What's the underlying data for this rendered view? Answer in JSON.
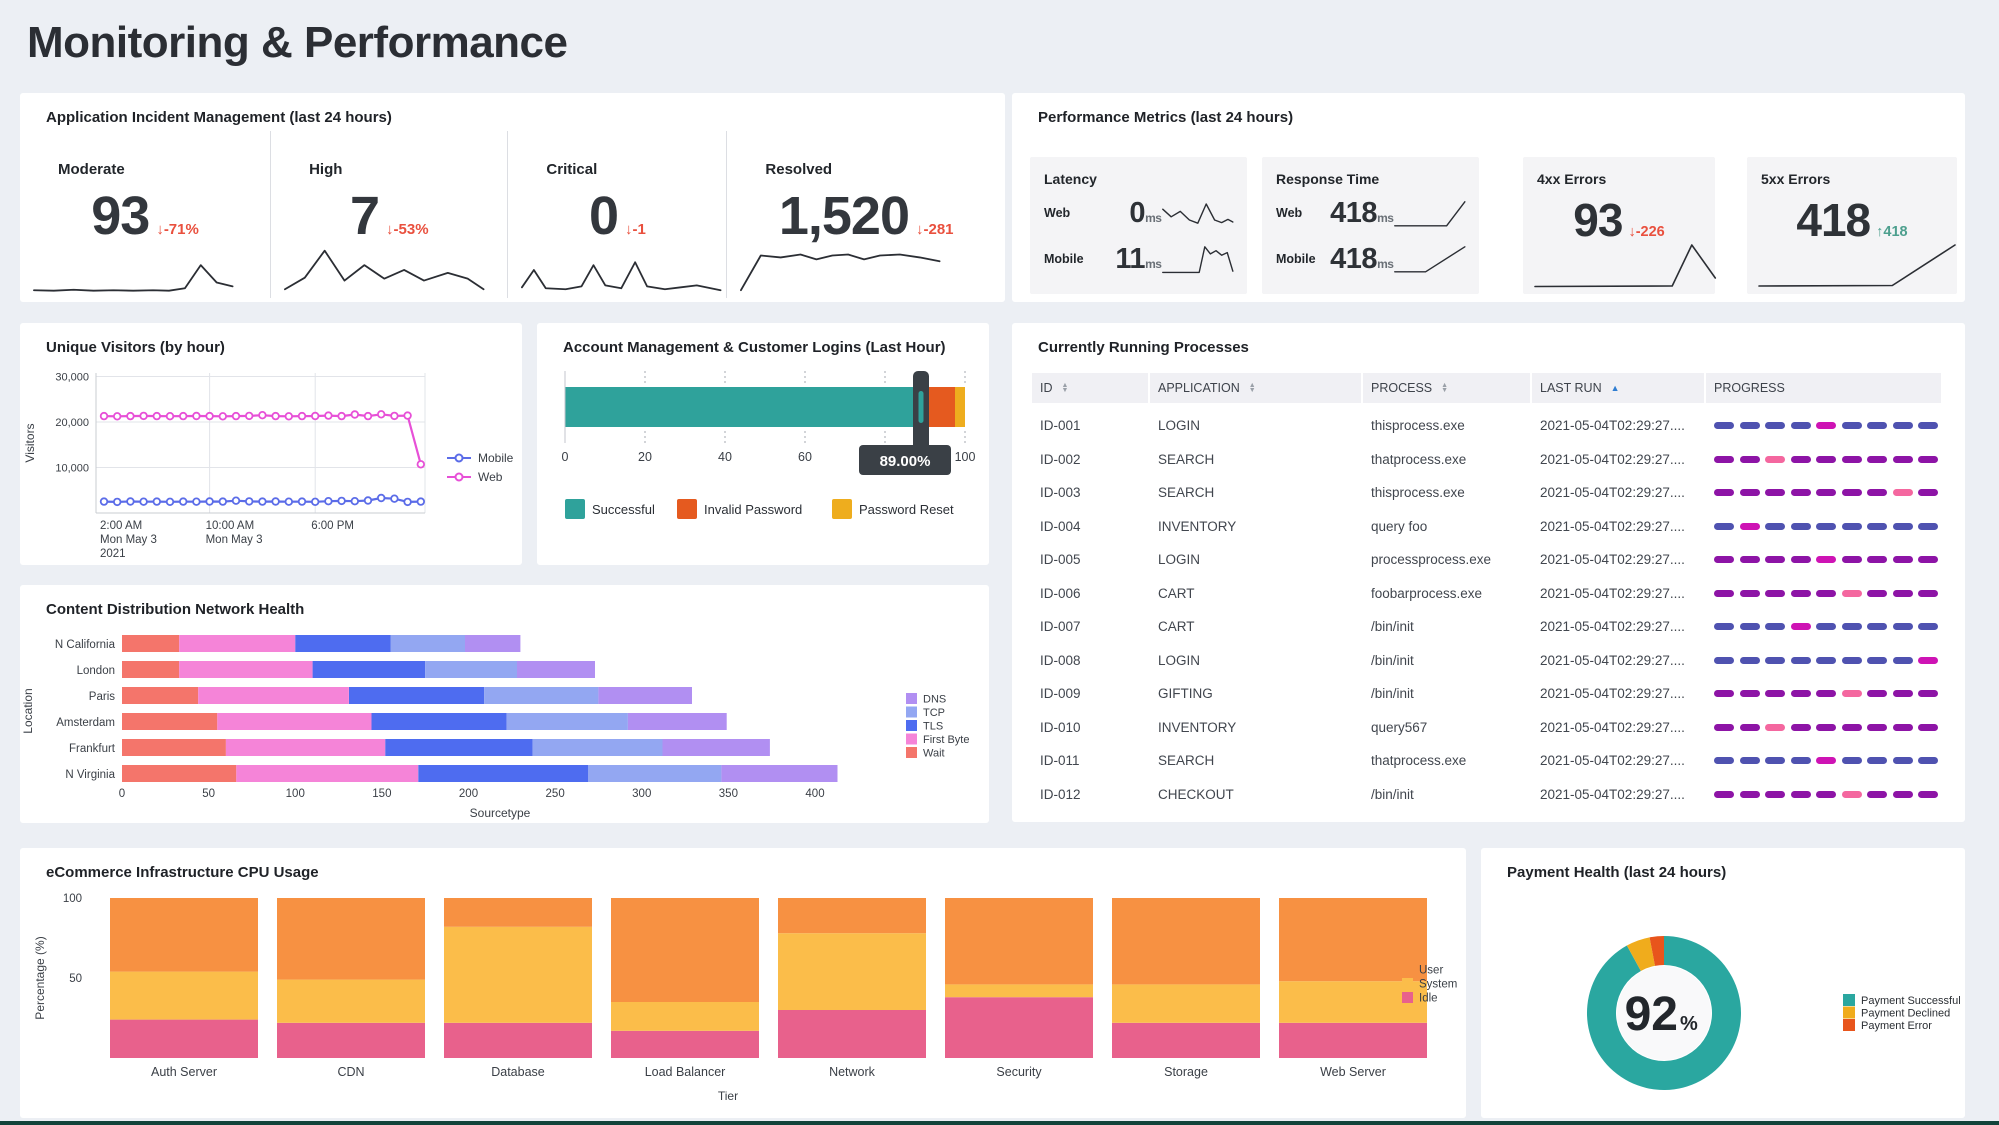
{
  "page": {
    "title": "Monitoring & Performance"
  },
  "colors": {
    "delta_down": "#e9503e",
    "delta_up": "#4d9f8e",
    "sparkline": "#2b2e34",
    "progress_palette": {
      "indigo": "#4f52b0",
      "purple": "#8d14a6",
      "magenta": "#ce13b4",
      "pink": "#f4679f"
    }
  },
  "incident_panel": {
    "title": "Application Incident Management (last 24 hours)",
    "cards": [
      {
        "label": "Moderate",
        "value": "93",
        "arrow": "down",
        "delta": "-71%",
        "spark": [
          [
            0,
            6
          ],
          [
            10,
            5
          ],
          [
            20,
            7
          ],
          [
            30,
            5
          ],
          [
            40,
            6
          ],
          [
            50,
            5
          ],
          [
            60,
            6
          ],
          [
            68,
            5
          ],
          [
            76,
            10
          ],
          [
            84,
            58
          ],
          [
            92,
            22
          ],
          [
            100,
            14
          ]
        ]
      },
      {
        "label": "High",
        "value": "7",
        "arrow": "down",
        "delta": "-53%",
        "spark": [
          [
            0,
            8
          ],
          [
            10,
            32
          ],
          [
            20,
            88
          ],
          [
            30,
            26
          ],
          [
            40,
            58
          ],
          [
            50,
            30
          ],
          [
            60,
            48
          ],
          [
            70,
            26
          ],
          [
            82,
            42
          ],
          [
            92,
            30
          ],
          [
            100,
            8
          ]
        ]
      },
      {
        "label": "Critical",
        "value": "0",
        "arrow": "down",
        "delta": "-1",
        "spark": [
          [
            0,
            12
          ],
          [
            6,
            48
          ],
          [
            12,
            10
          ],
          [
            22,
            8
          ],
          [
            30,
            14
          ],
          [
            36,
            58
          ],
          [
            42,
            16
          ],
          [
            50,
            10
          ],
          [
            57,
            64
          ],
          [
            63,
            14
          ],
          [
            72,
            8
          ],
          [
            80,
            12
          ],
          [
            88,
            16
          ],
          [
            100,
            6
          ]
        ]
      },
      {
        "label": "Resolved",
        "value": "1,520",
        "arrow": "down",
        "delta": "-281",
        "spark": [
          [
            0,
            6
          ],
          [
            10,
            78
          ],
          [
            20,
            74
          ],
          [
            30,
            80
          ],
          [
            38,
            70
          ],
          [
            46,
            78
          ],
          [
            54,
            80
          ],
          [
            62,
            70
          ],
          [
            70,
            78
          ],
          [
            80,
            80
          ],
          [
            90,
            74
          ],
          [
            100,
            66
          ]
        ]
      }
    ]
  },
  "performance_panel": {
    "title": "Performance Metrics (last 24 hours)",
    "cards": [
      {
        "kind": "duo",
        "title": "Latency",
        "rows": [
          {
            "label": "Web",
            "value": "0",
            "unit": "ms",
            "spark": [
              [
                0,
                62
              ],
              [
                12,
                38
              ],
              [
                25,
                55
              ],
              [
                38,
                28
              ],
              [
                50,
                18
              ],
              [
                62,
                78
              ],
              [
                74,
                28
              ],
              [
                84,
                20
              ],
              [
                93,
                30
              ],
              [
                100,
                22
              ]
            ]
          },
          {
            "label": "Mobile",
            "value": "11",
            "unit": "ms",
            "spark": [
              [
                0,
                8
              ],
              [
                52,
                8
              ],
              [
                60,
                88
              ],
              [
                68,
                66
              ],
              [
                76,
                76
              ],
              [
                84,
                62
              ],
              [
                92,
                70
              ],
              [
                100,
                12
              ]
            ]
          }
        ]
      },
      {
        "kind": "duo",
        "title": "Response Time",
        "rows": [
          {
            "label": "Web",
            "value": "418",
            "unit": "ms",
            "spark": [
              [
                0,
                10
              ],
              [
                74,
                10
              ],
              [
                100,
                85
              ]
            ]
          },
          {
            "label": "Mobile",
            "value": "418",
            "unit": "ms",
            "spark": [
              [
                0,
                10
              ],
              [
                44,
                10
              ],
              [
                100,
                88
              ]
            ]
          }
        ]
      },
      {
        "kind": "big",
        "title": "4xx Errors",
        "value": "93",
        "arrow": "down",
        "delta": "-226",
        "spark": [
          [
            0,
            5
          ],
          [
            70,
            6
          ],
          [
            80,
            88
          ],
          [
            92,
            22
          ]
        ]
      },
      {
        "kind": "big",
        "title": "5xx Errors",
        "value": "418",
        "arrow": "up",
        "delta": "418",
        "spark": [
          [
            0,
            6
          ],
          [
            68,
            7
          ],
          [
            100,
            88
          ]
        ]
      }
    ]
  },
  "chart_data": [
    {
      "id": "unique_visitors",
      "type": "line",
      "title": "Unique Visitors (by hour)",
      "xlabel": "",
      "ylabel": "Visitors",
      "ylim": [
        0,
        33000
      ],
      "y_ticks": [
        10000,
        20000,
        30000
      ],
      "y_tick_labels": [
        "10,000",
        "20,000",
        "30,000"
      ],
      "x_tick_hours": [
        0,
        8,
        16
      ],
      "x_tick_labels": [
        [
          "2:00 AM",
          "Mon May 3",
          "2021"
        ],
        [
          "10:00 AM",
          "Mon May 3"
        ],
        [
          "6:00 PM"
        ]
      ],
      "legend_position": "right",
      "grid": true,
      "series": [
        {
          "name": "Mobile",
          "color": "#5b6ce8",
          "values": [
            2500,
            2450,
            2520,
            2480,
            2500,
            2460,
            2500,
            2480,
            2520,
            2500,
            2700,
            2550,
            2500,
            2520,
            2480,
            2500,
            2460,
            2600,
            2650,
            2600,
            2750,
            3300,
            3150,
            2450,
            2500
          ]
        },
        {
          "name": "Web",
          "color": "#e750d7",
          "values": [
            21300,
            21250,
            21300,
            21350,
            21300,
            21280,
            21300,
            21320,
            21300,
            21250,
            21300,
            21350,
            21500,
            21300,
            21250,
            21300,
            21320,
            21400,
            21300,
            21650,
            21300,
            21700,
            21350,
            21400,
            10700
          ]
        }
      ]
    },
    {
      "id": "customer_logins",
      "type": "bar",
      "orientation": "horizontal",
      "stacked": true,
      "title": "Account Management & Customer Logins (Last Hour)",
      "xlim": [
        0,
        100
      ],
      "x_ticks": [
        0,
        20,
        40,
        60,
        80,
        100
      ],
      "series": [
        {
          "name": "Successful",
          "color": "#2fa29b",
          "value": 89
        },
        {
          "name": "Invalid Password",
          "color": "#e55a1f",
          "value": 8.5
        },
        {
          "name": "Password Reset",
          "color": "#eead1e",
          "value": 2.5
        }
      ],
      "marker": {
        "value": 89,
        "tooltip": "89.00%"
      },
      "legend_position": "bottom"
    },
    {
      "id": "running_processes",
      "type": "table",
      "title": "Currently Running Processes",
      "columns": [
        {
          "label": "ID",
          "sort": "both"
        },
        {
          "label": "APPLICATION",
          "sort": "both"
        },
        {
          "label": "PROCESS",
          "sort": "both"
        },
        {
          "label": "LAST RUN",
          "sort": "asc"
        },
        {
          "label": "PROGRESS",
          "sort": "none"
        }
      ],
      "rows": [
        {
          "id": "ID-001",
          "application": "LOGIN",
          "process": "thisprocess.exe",
          "last_run": "2021-05-04T02:29:27....",
          "progress": [
            "indigo",
            "indigo",
            "indigo",
            "indigo",
            "magenta",
            "indigo",
            "indigo",
            "indigo",
            "indigo"
          ]
        },
        {
          "id": "ID-002",
          "application": "SEARCH",
          "process": "thatprocess.exe",
          "last_run": "2021-05-04T02:29:27....",
          "progress": [
            "purple",
            "purple",
            "pink",
            "purple",
            "purple",
            "purple",
            "purple",
            "purple",
            "purple"
          ]
        },
        {
          "id": "ID-003",
          "application": "SEARCH",
          "process": "thisprocess.exe",
          "last_run": "2021-05-04T02:29:27....",
          "progress": [
            "purple",
            "purple",
            "purple",
            "purple",
            "purple",
            "purple",
            "purple",
            "pink",
            "purple"
          ]
        },
        {
          "id": "ID-004",
          "application": "INVENTORY",
          "process": "query foo",
          "last_run": "2021-05-04T02:29:27....",
          "progress": [
            "indigo",
            "magenta",
            "indigo",
            "indigo",
            "indigo",
            "indigo",
            "indigo",
            "indigo",
            "indigo"
          ]
        },
        {
          "id": "ID-005",
          "application": "LOGIN",
          "process": "processprocess.exe",
          "last_run": "2021-05-04T02:29:27....",
          "progress": [
            "purple",
            "purple",
            "purple",
            "purple",
            "magenta",
            "purple",
            "purple",
            "purple",
            "purple"
          ]
        },
        {
          "id": "ID-006",
          "application": "CART",
          "process": "foobarprocess.exe",
          "last_run": "2021-05-04T02:29:27....",
          "progress": [
            "purple",
            "purple",
            "purple",
            "purple",
            "purple",
            "pink",
            "purple",
            "purple",
            "purple"
          ]
        },
        {
          "id": "ID-007",
          "application": "CART",
          "process": "/bin/init",
          "last_run": "2021-05-04T02:29:27....",
          "progress": [
            "indigo",
            "indigo",
            "indigo",
            "magenta",
            "indigo",
            "indigo",
            "indigo",
            "indigo",
            "indigo"
          ]
        },
        {
          "id": "ID-008",
          "application": "LOGIN",
          "process": "/bin/init",
          "last_run": "2021-05-04T02:29:27....",
          "progress": [
            "indigo",
            "indigo",
            "indigo",
            "indigo",
            "indigo",
            "indigo",
            "indigo",
            "indigo",
            "magenta"
          ]
        },
        {
          "id": "ID-009",
          "application": "GIFTING",
          "process": "/bin/init",
          "last_run": "2021-05-04T02:29:27....",
          "progress": [
            "purple",
            "purple",
            "purple",
            "purple",
            "purple",
            "pink",
            "purple",
            "purple",
            "purple"
          ]
        },
        {
          "id": "ID-010",
          "application": "INVENTORY",
          "process": "query567",
          "last_run": "2021-05-04T02:29:27....",
          "progress": [
            "purple",
            "purple",
            "pink",
            "purple",
            "purple",
            "purple",
            "purple",
            "purple",
            "purple"
          ]
        },
        {
          "id": "ID-011",
          "application": "SEARCH",
          "process": "thatprocess.exe",
          "last_run": "2021-05-04T02:29:27....",
          "progress": [
            "indigo",
            "indigo",
            "indigo",
            "indigo",
            "magenta",
            "indigo",
            "indigo",
            "indigo",
            "indigo"
          ]
        },
        {
          "id": "ID-012",
          "application": "CHECKOUT",
          "process": "/bin/init",
          "last_run": "2021-05-04T02:29:27....",
          "progress": [
            "purple",
            "purple",
            "purple",
            "purple",
            "purple",
            "pink",
            "purple",
            "purple",
            "purple"
          ]
        }
      ],
      "sort_state": {
        "column": "LAST RUN",
        "direction": "asc"
      }
    },
    {
      "id": "cdn_health",
      "type": "bar",
      "orientation": "horizontal",
      "stacked": true,
      "title": "Content Distribution Network Health",
      "xlabel": "Sourcetype",
      "ylabel": "Location",
      "xlim": [
        0,
        400
      ],
      "x_tick_step": 50,
      "categories": [
        "N California",
        "London",
        "Paris",
        "Amsterdam",
        "Frankfurt",
        "N Virginia"
      ],
      "series": [
        {
          "name": "Wait",
          "color": "#f4756b",
          "values": [
            33,
            33,
            44,
            55,
            60,
            66
          ]
        },
        {
          "name": "First Byte",
          "color": "#f584d8",
          "values": [
            67,
            77,
            87,
            89,
            92,
            105
          ]
        },
        {
          "name": "TLS",
          "color": "#4e6cf0",
          "values": [
            55,
            65,
            78,
            78,
            85,
            98
          ]
        },
        {
          "name": "TCP",
          "color": "#93a7f2",
          "values": [
            43,
            53,
            66,
            70,
            75,
            77
          ]
        },
        {
          "name": "DNS",
          "color": "#b18ff2",
          "values": [
            32,
            45,
            54,
            57,
            62,
            67
          ]
        }
      ],
      "legend_order": [
        "DNS",
        "TCP",
        "TLS",
        "First Byte",
        "Wait"
      ],
      "legend_position": "right"
    },
    {
      "id": "cpu_usage",
      "type": "bar",
      "stacked": true,
      "title": "eCommerce Infrastructure CPU Usage",
      "xlabel": "Tier",
      "ylabel": "Percentage (%)",
      "ylim": [
        0,
        100
      ],
      "y_ticks": [
        50,
        100
      ],
      "categories": [
        "Auth Server",
        "CDN",
        "Database",
        "Load Balancer",
        "Network",
        "Security",
        "Storage",
        "Web Server"
      ],
      "series": [
        {
          "name": "Idle",
          "color": "#e8618c",
          "values": [
            24,
            22,
            22,
            17,
            30,
            38,
            22,
            22
          ]
        },
        {
          "name": "System",
          "color": "#fbbd4a",
          "values": [
            30,
            27,
            60,
            18,
            48,
            8,
            24,
            26
          ]
        },
        {
          "name": "User",
          "color": "#f79142",
          "values": [
            46,
            51,
            18,
            65,
            22,
            54,
            54,
            52
          ]
        }
      ],
      "legend_order": [
        "User",
        "System",
        "Idle"
      ],
      "legend_position": "right"
    },
    {
      "id": "payment_health",
      "type": "pie",
      "donut": true,
      "title": "Payment Health (last 24 hours)",
      "center_value": "92",
      "center_unit": "%",
      "slices": [
        {
          "name": "Payment Successful",
          "color": "#2aa7a0",
          "value": 92
        },
        {
          "name": "Payment Declined",
          "color": "#f0ac1c",
          "value": 5
        },
        {
          "name": "Payment Error",
          "color": "#e8551c",
          "value": 3
        }
      ],
      "legend_position": "right"
    }
  ]
}
